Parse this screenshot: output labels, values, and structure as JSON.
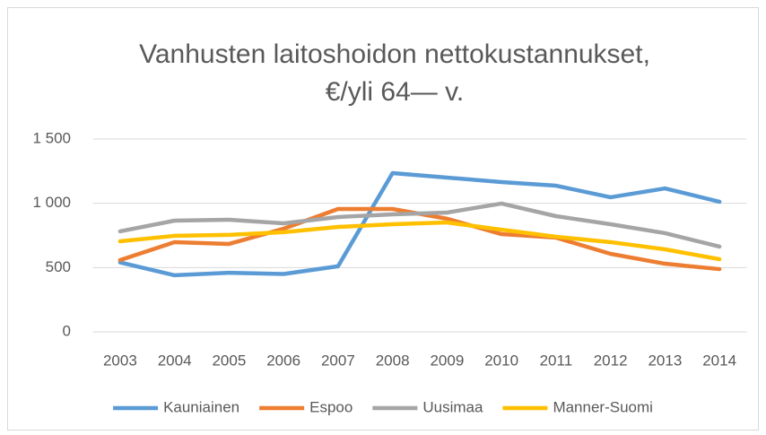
{
  "chart_data": {
    "type": "line",
    "title": [
      "Vanhusten laitoshoidon nettokustannukset,",
      "€/yli 64— v."
    ],
    "categories": [
      "2003",
      "2004",
      "2005",
      "2006",
      "2007",
      "2008",
      "2009",
      "2010",
      "2011",
      "2012",
      "2013",
      "2014"
    ],
    "series": [
      {
        "name": "Kauniainen",
        "color": "#5b9bd5",
        "values": [
          540,
          440,
          460,
          450,
          510,
          1235,
          1200,
          1165,
          1137,
          1047,
          1116,
          1012
        ]
      },
      {
        "name": "Espoo",
        "color": "#ed7d31",
        "values": [
          558,
          698,
          684,
          802,
          956,
          956,
          880,
          760,
          733,
          607,
          530,
          488
        ]
      },
      {
        "name": "Uusimaa",
        "color": "#a5a5a5",
        "values": [
          782,
          865,
          872,
          844,
          893,
          914,
          928,
          998,
          900,
          837,
          768,
          663
        ]
      },
      {
        "name": "Manner-Suomi",
        "color": "#ffc000",
        "values": [
          705,
          747,
          754,
          775,
          816,
          837,
          851,
          795,
          740,
          698,
          642,
          565
        ]
      }
    ],
    "ylim": [
      0,
      1500
    ],
    "yticks": [
      0,
      500,
      {
        "value": 1000,
        "label": "1 000"
      },
      {
        "value": 1500,
        "label": "1 500"
      }
    ],
    "grid": true,
    "legend": "bottom"
  }
}
